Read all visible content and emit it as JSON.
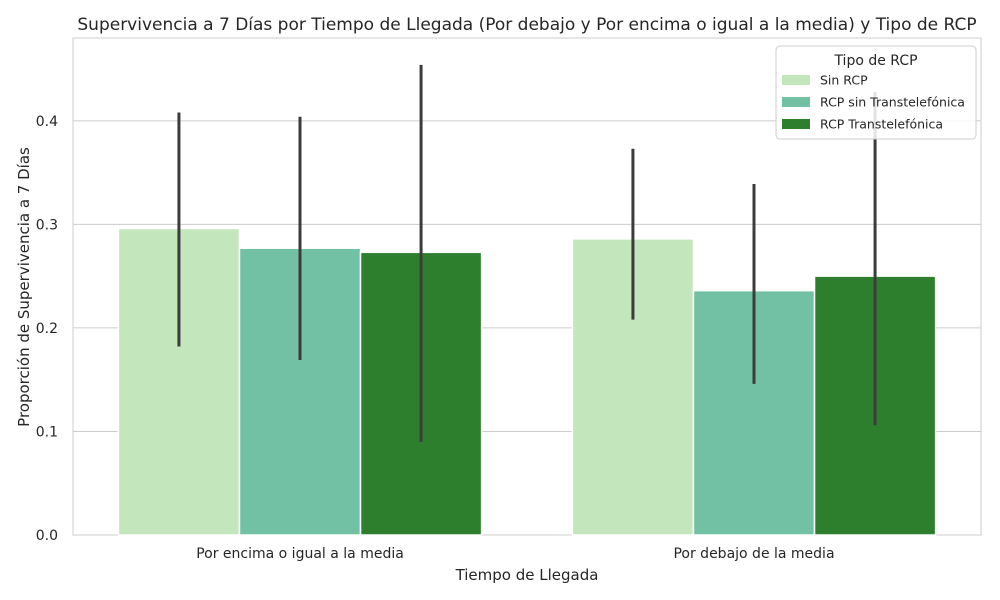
{
  "chart_data": {
    "type": "bar",
    "title": "Supervivencia a 7 Días por Tiempo de Llegada (Por debajo y Por encima o igual a la media) y Tipo de RCP",
    "xlabel": "Tiempo de Llegada",
    "ylabel": "Proporción de Supervivencia a 7 Días",
    "categories": [
      "Por encima o igual a la media",
      "Por debajo de la media"
    ],
    "ylim": [
      0,
      0.48
    ],
    "yticks": [
      0.0,
      0.1,
      0.2,
      0.3,
      0.4
    ],
    "ytick_labels": [
      "0.0",
      "0.1",
      "0.2",
      "0.3",
      "0.4"
    ],
    "grid": "horizontal",
    "legend": {
      "title": "Tipo de RCP",
      "placement": "top-right"
    },
    "series": [
      {
        "name": "Sin RCP",
        "color": "#c3e6bd",
        "values": [
          0.296,
          0.286
        ],
        "ci_low": [
          0.182,
          0.208
        ],
        "ci_high": [
          0.408,
          0.373
        ]
      },
      {
        "name": "RCP sin Transtelefónica",
        "color": "#73c1a5",
        "values": [
          0.277,
          0.236
        ],
        "ci_low": [
          0.169,
          0.146
        ],
        "ci_high": [
          0.404,
          0.339
        ]
      },
      {
        "name": "RCP Transtelefónica",
        "color": "#2d7f2d",
        "values": [
          0.273,
          0.25
        ],
        "ci_low": [
          0.09,
          0.106
        ],
        "ci_high": [
          0.454,
          0.428
        ]
      }
    ],
    "errorbar_color": "#3c3c3c"
  }
}
